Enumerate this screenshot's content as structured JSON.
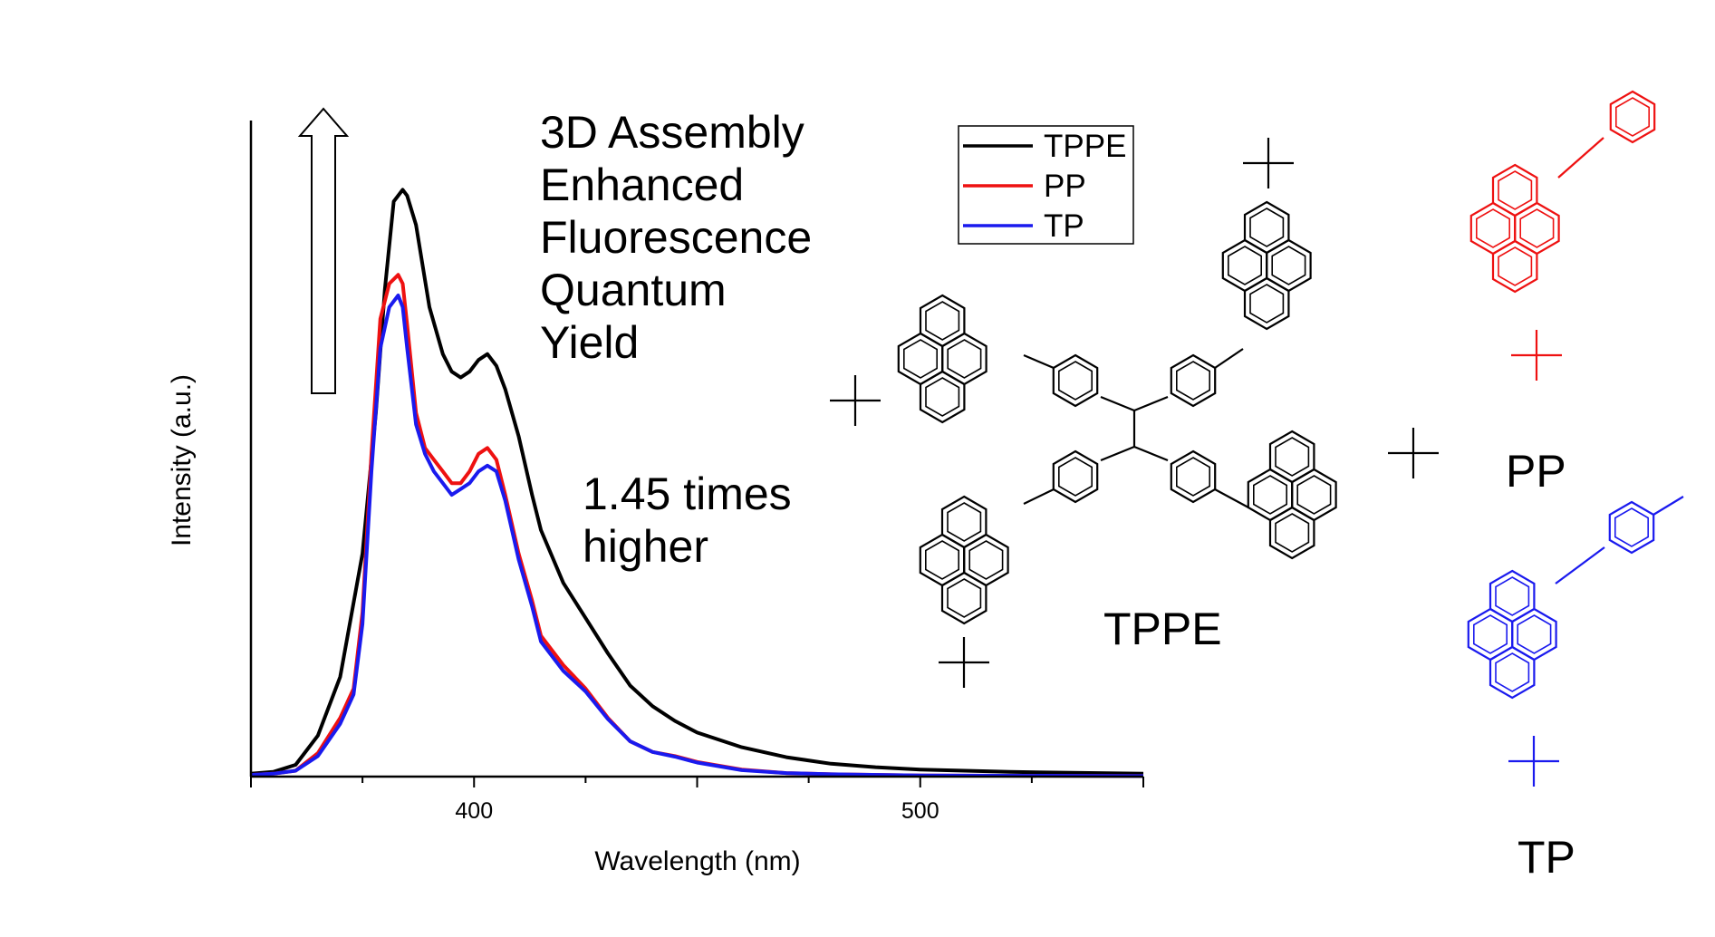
{
  "chart_data": {
    "type": "line",
    "xlabel": "Wavelength (nm)",
    "ylabel": "Intensity (a.u.)",
    "xlim": [
      350,
      550
    ],
    "ylim": [
      0,
      1.05
    ],
    "xticks": [
      400,
      500
    ],
    "x_tick_labels": [
      "400",
      "500"
    ],
    "legend_position": "top-right",
    "grid": false,
    "series": [
      {
        "name": "TPPE",
        "color": "#000000",
        "x": [
          350,
          355,
          360,
          365,
          370,
          375,
          378,
          380,
          382,
          384,
          385,
          387,
          390,
          393,
          395,
          397,
          399,
          401,
          403,
          405,
          407,
          410,
          413,
          415,
          420,
          425,
          430,
          435,
          440,
          445,
          450,
          460,
          470,
          480,
          490,
          500,
          520,
          550
        ],
        "y": [
          0.005,
          0.008,
          0.02,
          0.07,
          0.17,
          0.38,
          0.62,
          0.83,
          0.98,
          1.0,
          0.99,
          0.94,
          0.8,
          0.72,
          0.69,
          0.68,
          0.69,
          0.71,
          0.72,
          0.7,
          0.66,
          0.58,
          0.48,
          0.42,
          0.33,
          0.27,
          0.21,
          0.155,
          0.12,
          0.095,
          0.075,
          0.05,
          0.033,
          0.022,
          0.016,
          0.012,
          0.008,
          0.005
        ]
      },
      {
        "name": "PP",
        "color": "#ee1111",
        "x": [
          350,
          355,
          360,
          365,
          370,
          373,
          375,
          377,
          379,
          381,
          383,
          384,
          385,
          387,
          389,
          391,
          393,
          395,
          397,
          399,
          401,
          403,
          405,
          407,
          410,
          413,
          415,
          420,
          425,
          430,
          435,
          440,
          445,
          450,
          460,
          470,
          480,
          500,
          550
        ],
        "y": [
          0.003,
          0.005,
          0.01,
          0.04,
          0.1,
          0.15,
          0.28,
          0.55,
          0.78,
          0.84,
          0.855,
          0.84,
          0.77,
          0.62,
          0.56,
          0.54,
          0.52,
          0.5,
          0.5,
          0.52,
          0.55,
          0.56,
          0.54,
          0.48,
          0.38,
          0.3,
          0.24,
          0.19,
          0.15,
          0.1,
          0.06,
          0.042,
          0.035,
          0.025,
          0.012,
          0.006,
          0.004,
          0.002,
          0.001
        ]
      },
      {
        "name": "TP",
        "color": "#1a1aee",
        "x": [
          350,
          355,
          360,
          365,
          370,
          373,
          375,
          377,
          379,
          381,
          383,
          384,
          385,
          387,
          389,
          391,
          393,
          395,
          397,
          399,
          401,
          403,
          405,
          407,
          410,
          413,
          415,
          420,
          425,
          430,
          435,
          440,
          445,
          450,
          460,
          470,
          480,
          500,
          550
        ],
        "y": [
          0.003,
          0.005,
          0.01,
          0.035,
          0.09,
          0.14,
          0.26,
          0.52,
          0.73,
          0.8,
          0.82,
          0.8,
          0.73,
          0.6,
          0.55,
          0.52,
          0.5,
          0.48,
          0.49,
          0.5,
          0.52,
          0.53,
          0.52,
          0.47,
          0.37,
          0.29,
          0.23,
          0.18,
          0.145,
          0.098,
          0.06,
          0.042,
          0.034,
          0.024,
          0.011,
          0.006,
          0.004,
          0.002,
          0.001
        ]
      }
    ]
  },
  "annotations": {
    "assembly_lines": [
      "3D Assembly",
      "Enhanced",
      "Fluorescence",
      "Quantum",
      "Yield"
    ],
    "ratio_lines": [
      "1.45 times",
      "higher"
    ],
    "ratio_color": "#0e7f74"
  },
  "molecules": {
    "tppe": {
      "label": "TPPE",
      "color": "#000000"
    },
    "pp": {
      "label": "PP",
      "color": "#ee1111"
    },
    "tp": {
      "label": "TP",
      "color": "#1a1aee"
    }
  }
}
